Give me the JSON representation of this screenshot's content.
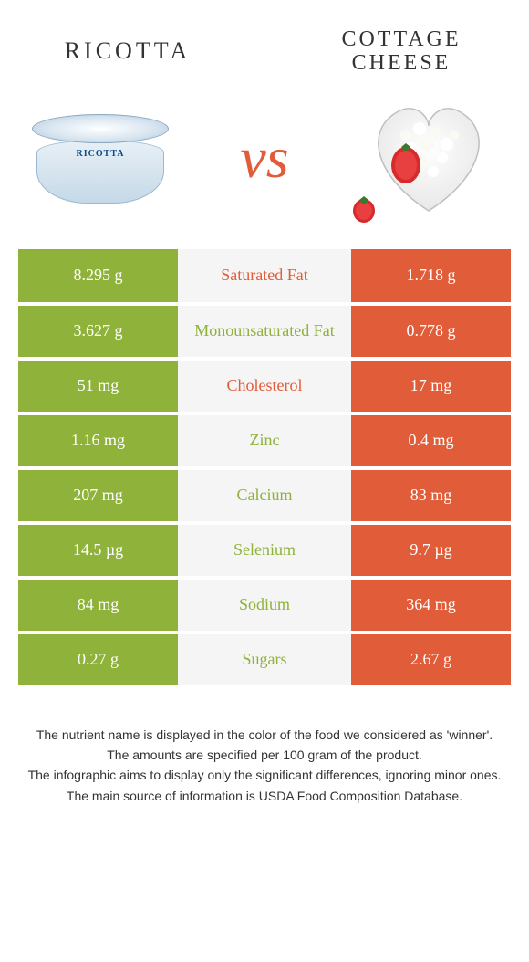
{
  "header": {
    "left_title": "RICOTTA",
    "right_title": "COTTAGE CHEESE",
    "vs": "vs"
  },
  "colors": {
    "left_bg": "#8eb23a",
    "right_bg": "#e15c38",
    "mid_bg": "#f5f5f5",
    "left_winner_text": "#8eb23a",
    "right_winner_text": "#e15c38",
    "row_border": "#ffffff"
  },
  "table": {
    "rows": [
      {
        "left": "8.295 g",
        "label": "Saturated Fat",
        "right": "1.718 g",
        "winner": "right"
      },
      {
        "left": "3.627 g",
        "label": "Monounsaturated Fat",
        "right": "0.778 g",
        "winner": "left"
      },
      {
        "left": "51 mg",
        "label": "Cholesterol",
        "right": "17 mg",
        "winner": "right"
      },
      {
        "left": "1.16 mg",
        "label": "Zinc",
        "right": "0.4 mg",
        "winner": "left"
      },
      {
        "left": "207 mg",
        "label": "Calcium",
        "right": "83 mg",
        "winner": "left"
      },
      {
        "left": "14.5 µg",
        "label": "Selenium",
        "right": "9.7 µg",
        "winner": "left"
      },
      {
        "left": "84 mg",
        "label": "Sodium",
        "right": "364 mg",
        "winner": "left"
      },
      {
        "left": "0.27 g",
        "label": "Sugars",
        "right": "2.67 g",
        "winner": "left"
      }
    ]
  },
  "footnotes": [
    "The nutrient name is displayed in the color of the food we considered as 'winner'.",
    "The amounts are specified per 100 gram of the product.",
    "The infographic aims to display only the significant differences, ignoring minor ones.",
    "The main source of information is USDA Food Composition Database."
  ],
  "product_label": "RICOTTA"
}
